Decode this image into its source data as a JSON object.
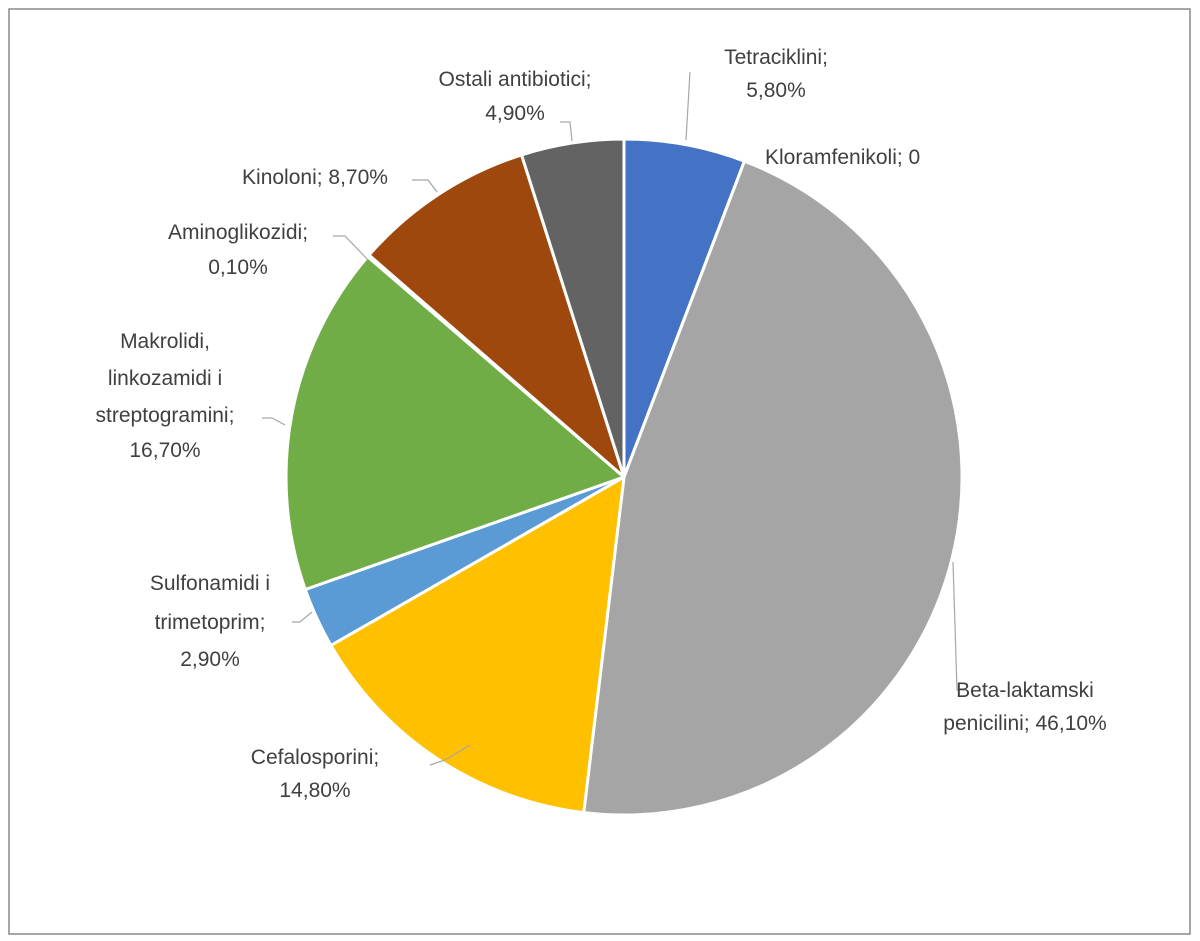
{
  "chart_data": {
    "type": "pie",
    "title": "",
    "start_angle_deg": 0,
    "direction": "clockwise",
    "slices": [
      {
        "name": "Tetraciklini",
        "value": 5.8,
        "label": [
          "Tetraciklini;",
          "5,80%"
        ],
        "color": "#4472C4"
      },
      {
        "name": "Kloramfenikoli",
        "value": 0,
        "label": [
          "Kloramfenikoli; 0"
        ],
        "color": "#ED7D31"
      },
      {
        "name": "Beta-laktamski penicilini",
        "value": 46.1,
        "label": [
          "Beta-laktamski",
          "penicilini; 46,10%"
        ],
        "color": "#A5A5A5"
      },
      {
        "name": "Cefalosporini",
        "value": 14.8,
        "label": [
          "Cefalosporini;",
          "14,80%"
        ],
        "color": "#FFC000"
      },
      {
        "name": "Sulfonamidi i trimetoprim",
        "value": 2.9,
        "label": [
          "Sulfonamidi i",
          "trimetoprim;",
          "2,90%"
        ],
        "color": "#5B9BD5"
      },
      {
        "name": "Makrolidi, linkozamidi i streptogramini",
        "value": 16.7,
        "label": [
          "Makrolidi,",
          "linkozamidi i",
          "streptogramini;",
          "16,70%"
        ],
        "color": "#70AD47"
      },
      {
        "name": "Aminoglikozidi",
        "value": 0.1,
        "label": [
          "Aminoglikozidi;",
          "0,10%"
        ],
        "color": "#264478"
      },
      {
        "name": "Kinoloni",
        "value": 8.7,
        "label": [
          "Kinoloni; 8,70%"
        ],
        "color": "#9E480E"
      },
      {
        "name": "Ostali antibiotici",
        "value": 4.9,
        "label": [
          "Ostali antibiotici;",
          "4,90%"
        ],
        "color": "#636363"
      }
    ]
  }
}
